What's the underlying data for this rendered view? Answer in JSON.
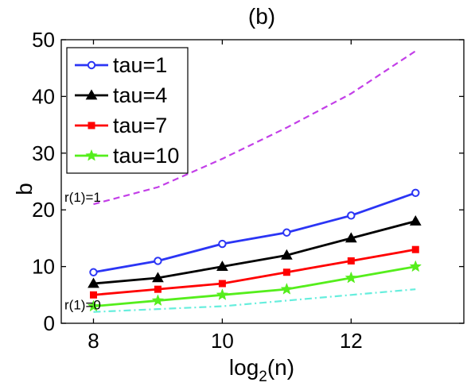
{
  "chart_data": {
    "type": "line",
    "title": "(b)",
    "xlabel": "log",
    "xlabel_sub": "2",
    "xlabel_suffix": "(n)",
    "ylabel": "b",
    "xlim": [
      7.5,
      13.75
    ],
    "ylim": [
      0,
      50
    ],
    "xticks": [
      8,
      10,
      12
    ],
    "yticks": [
      0,
      10,
      20,
      30,
      40,
      50
    ],
    "grid": false,
    "legend_position": "top-left",
    "x": [
      8,
      9,
      10,
      11,
      12,
      13
    ],
    "series": [
      {
        "name": "tau=1",
        "values": [
          9,
          11,
          14,
          16,
          19,
          23
        ],
        "color": "#2b35f5",
        "marker": "circle"
      },
      {
        "name": "tau=4",
        "values": [
          7,
          8,
          10,
          12,
          15,
          18
        ],
        "color": "#000000",
        "marker": "triangle"
      },
      {
        "name": "tau=7",
        "values": [
          5,
          6,
          7,
          9,
          11,
          13
        ],
        "color": "#ff0000",
        "marker": "square"
      },
      {
        "name": "tau=10",
        "values": [
          3,
          4,
          5,
          6,
          8,
          10
        ],
        "color": "#55ee1c",
        "marker": "star"
      }
    ],
    "bounds": [
      {
        "label": "r(1)=1",
        "values": [
          21,
          24,
          29,
          34.5,
          40.5,
          48
        ],
        "color": "#c33fe8",
        "style": "dashed"
      },
      {
        "label": "r(1)=0",
        "values": [
          2,
          2.5,
          3,
          4,
          5,
          6
        ],
        "color": "#66eedd",
        "style": "dashdot"
      }
    ]
  }
}
